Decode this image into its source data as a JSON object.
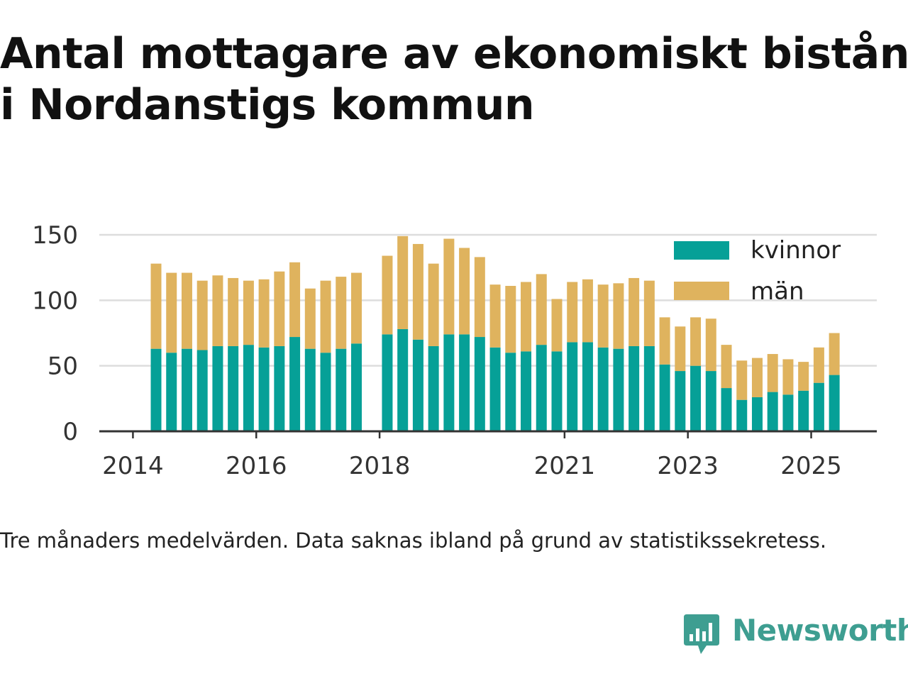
{
  "title_line1": "Antal mottagare av ekonomiskt bistånd",
  "title_line2": "i Nordanstigs kommun",
  "caption": "Tre månaders medelvärden. Data saknas ibland på grund av statistikssekretess.",
  "logo_text": "Newsworthy",
  "colors": {
    "kvinnor": "#06a097",
    "man": "#dfb35e",
    "grid": "#dddddd",
    "axis": "#333333"
  },
  "chart_data": {
    "type": "bar",
    "stacked": true,
    "x_axis": "time (quarterly)",
    "x_tick_labels": [
      "2014",
      "2016",
      "2018",
      "2021",
      "2023",
      "2025"
    ],
    "y_ticks": [
      0,
      50,
      100,
      150
    ],
    "ylim": [
      0,
      150
    ],
    "grid": true,
    "legend_position": "top-right",
    "categories": [
      "2014-Q2",
      "2014-Q3",
      "2014-Q4",
      "2015-Q1",
      "2015-Q2",
      "2015-Q3",
      "2015-Q4",
      "2016-Q1",
      "2016-Q2",
      "2016-Q3",
      "2016-Q4",
      "2017-Q1",
      "2017-Q2",
      "2017-Q3",
      "2017-Q4",
      "2018-Q1",
      "2018-Q2",
      "2018-Q3",
      "2018-Q4",
      "2019-Q1",
      "2019-Q2",
      "2019-Q3",
      "2019-Q4",
      "2020-Q1",
      "2020-Q2",
      "2020-Q3",
      "2020-Q4",
      "2021-Q1",
      "2021-Q2",
      "2021-Q3",
      "2021-Q4",
      "2022-Q1",
      "2022-Q2",
      "2022-Q3",
      "2022-Q4",
      "2023-Q1",
      "2023-Q2",
      "2023-Q3",
      "2023-Q4",
      "2024-Q1",
      "2024-Q2",
      "2024-Q3",
      "2024-Q4",
      "2025-Q1",
      "2025-Q2"
    ],
    "series": [
      {
        "name": "kvinnor",
        "values": [
          63,
          60,
          63,
          62,
          65,
          65,
          66,
          64,
          65,
          72,
          63,
          60,
          63,
          67,
          null,
          74,
          78,
          70,
          65,
          74,
          74,
          72,
          64,
          60,
          61,
          66,
          61,
          68,
          68,
          64,
          63,
          65,
          65,
          51,
          46,
          50,
          46,
          33,
          24,
          26,
          30,
          28,
          31,
          37,
          43
        ]
      },
      {
        "name": "män",
        "values": [
          65,
          61,
          58,
          53,
          54,
          52,
          49,
          52,
          57,
          57,
          46,
          55,
          55,
          54,
          null,
          60,
          71,
          73,
          63,
          73,
          66,
          61,
          48,
          51,
          53,
          54,
          40,
          46,
          48,
          48,
          50,
          52,
          50,
          36,
          34,
          37,
          40,
          33,
          30,
          30,
          29,
          27,
          22,
          27,
          32
        ]
      }
    ]
  }
}
